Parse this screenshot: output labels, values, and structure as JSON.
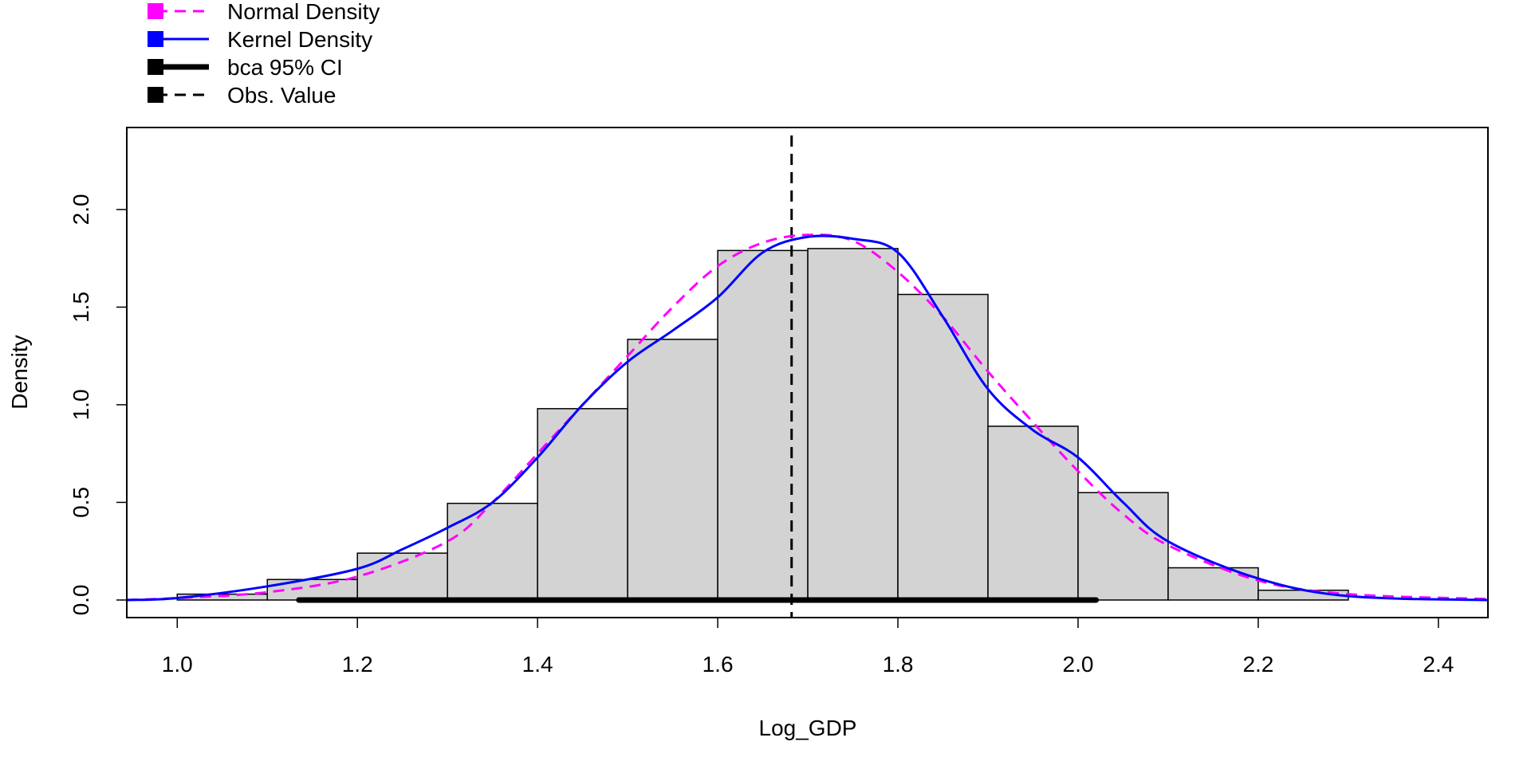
{
  "chart_data": {
    "type": "bar",
    "title": "",
    "xlabel": "Log_GDP",
    "ylabel": "Density",
    "xlim": [
      0.944,
      2.455
    ],
    "ylim": [
      -0.09,
      2.42
    ],
    "x_ticks": [
      "1.0",
      "1.2",
      "1.4",
      "1.6",
      "1.8",
      "2.0",
      "2.2",
      "2.4"
    ],
    "x_tick_values": [
      1.0,
      1.2,
      1.4,
      1.6,
      1.8,
      2.0,
      2.2,
      2.4
    ],
    "y_ticks": [
      "0.0",
      "0.5",
      "1.0",
      "1.5",
      "2.0"
    ],
    "y_tick_values": [
      0.0,
      0.5,
      1.0,
      1.5,
      2.0
    ],
    "grid": false,
    "legend_position": "top-left",
    "histogram": {
      "bin_edges": [
        1.0,
        1.1,
        1.2,
        1.3,
        1.4,
        1.5,
        1.6,
        1.7,
        1.8,
        1.9,
        2.0,
        2.1,
        2.2,
        2.3
      ],
      "densities": [
        0.03,
        0.105,
        0.24,
        0.495,
        0.98,
        1.335,
        1.79,
        1.8,
        1.565,
        0.89,
        0.55,
        0.165,
        0.05
      ],
      "fill": "#d3d3d3"
    },
    "series": [
      {
        "name": "Normal Density",
        "style": "dashed",
        "color": "#ff00ff",
        "x": [
          0.944,
          1.0,
          1.1,
          1.2,
          1.3,
          1.35,
          1.4,
          1.45,
          1.5,
          1.55,
          1.6,
          1.65,
          1.7,
          1.75,
          1.8,
          1.85,
          1.9,
          1.95,
          2.0,
          2.05,
          2.1,
          2.2,
          2.3,
          2.455
        ],
        "y": [
          0.0,
          0.01,
          0.04,
          0.12,
          0.3,
          0.5,
          0.75,
          1.0,
          1.25,
          1.5,
          1.71,
          1.83,
          1.87,
          1.84,
          1.68,
          1.45,
          1.17,
          0.91,
          0.66,
          0.44,
          0.28,
          0.1,
          0.03,
          0.005
        ]
      },
      {
        "name": "Kernel Density",
        "style": "solid",
        "color": "#0000ff",
        "x": [
          0.944,
          1.0,
          1.1,
          1.2,
          1.25,
          1.3,
          1.35,
          1.4,
          1.45,
          1.5,
          1.55,
          1.6,
          1.65,
          1.7,
          1.75,
          1.8,
          1.85,
          1.9,
          1.95,
          2.0,
          2.05,
          2.1,
          2.2,
          2.3,
          2.455
        ],
        "y": [
          0.0,
          0.01,
          0.07,
          0.16,
          0.26,
          0.37,
          0.5,
          0.73,
          1.0,
          1.22,
          1.38,
          1.55,
          1.78,
          1.86,
          1.85,
          1.78,
          1.45,
          1.08,
          0.87,
          0.73,
          0.5,
          0.3,
          0.11,
          0.02,
          0.0
        ]
      }
    ],
    "ci": {
      "name": "bca 95% CI",
      "lower": 1.135,
      "upper": 2.02,
      "color": "#000000"
    },
    "observed": {
      "name": "Obs. Value",
      "value": 1.682,
      "color": "#000000"
    },
    "legend": [
      {
        "label": "Normal Density",
        "color": "#ff00ff",
        "style": "dashed"
      },
      {
        "label": "Kernel Density",
        "color": "#0000ff",
        "style": "solid"
      },
      {
        "label": "bca 95% CI",
        "color": "#000000",
        "style": "thick"
      },
      {
        "label": "Obs. Value",
        "color": "#000000",
        "style": "dashed"
      }
    ]
  }
}
